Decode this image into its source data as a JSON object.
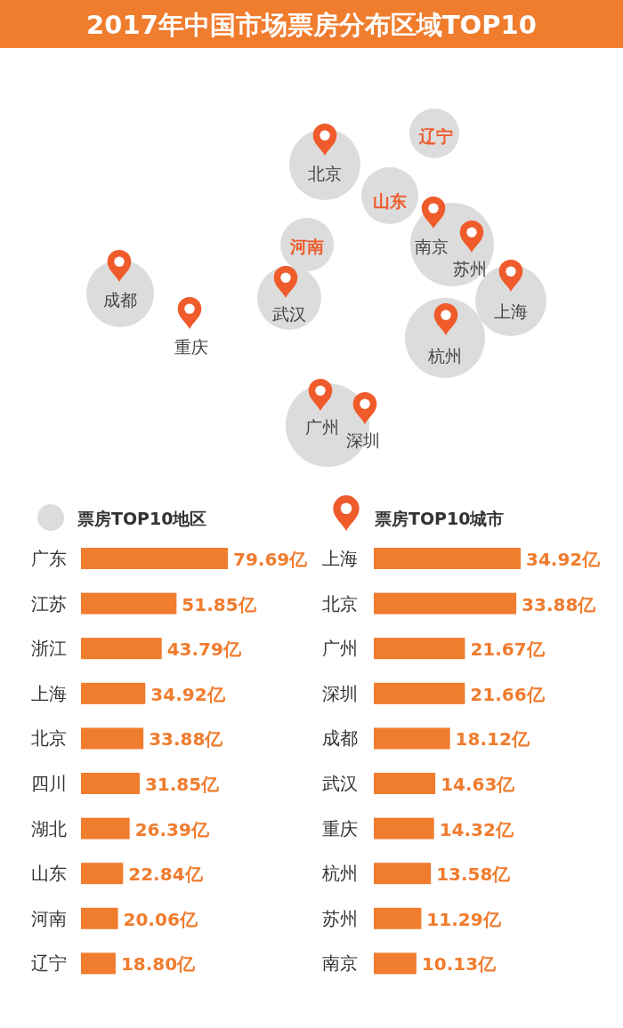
{
  "chart_data": [
    {
      "type": "other",
      "title": "2017年中国市场票房分布区域TOP10",
      "annotations": [
        "辽宁",
        "山东",
        "河南",
        "北京",
        "南京",
        "苏州",
        "上海",
        "杭州",
        "武汉",
        "成都",
        "重庆",
        "广州",
        "深圳"
      ]
    },
    {
      "type": "bar",
      "orientation": "horizontal",
      "title": "票房TOP10地区",
      "color": "#f07c2e",
      "categories": [
        "广东",
        "江苏",
        "浙江",
        "上海",
        "北京",
        "四川",
        "湖北",
        "山东",
        "河南",
        "辽宁"
      ],
      "values": [
        79.69,
        51.85,
        43.79,
        34.92,
        33.88,
        31.85,
        26.39,
        22.84,
        20.06,
        18.8
      ],
      "value_labels": [
        "79.69亿",
        "51.85亿",
        "43.79亿",
        "34.92亿",
        "33.88亿",
        "31.85亿",
        "26.39亿",
        "22.84亿",
        "20.06亿",
        "18.80亿"
      ]
    },
    {
      "type": "bar",
      "orientation": "horizontal",
      "title": "票房TOP10城市",
      "color": "#f07c2e",
      "categories": [
        "上海",
        "北京",
        "广州",
        "深圳",
        "成都",
        "武汉",
        "重庆",
        "杭州",
        "苏州",
        "南京"
      ],
      "values": [
        34.92,
        33.88,
        21.67,
        21.66,
        18.12,
        14.63,
        14.32,
        13.58,
        11.29,
        10.13
      ],
      "value_labels": [
        "34.92亿",
        "33.88亿",
        "21.67亿",
        "21.66亿",
        "18.12亿",
        "14.63亿",
        "14.32亿",
        "13.58亿",
        "11.29亿",
        "10.13亿"
      ]
    }
  ]
}
